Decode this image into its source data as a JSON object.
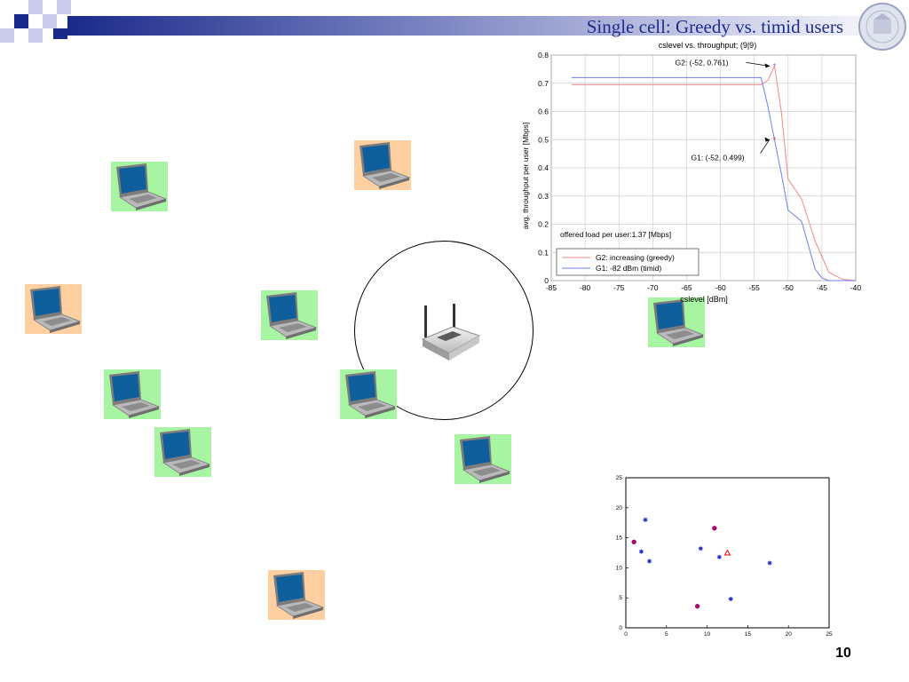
{
  "slide": {
    "title": "Single cell: Greedy vs. timid users",
    "page_number": "10"
  },
  "colors": {
    "title": "#1f2c8c",
    "header_square": "#1a2a8a",
    "laptop_green": "#a7f5a3",
    "laptop_orange": "#fecfa1",
    "series_g1": "#6f7ff0",
    "series_g2": "#f08a8a"
  },
  "icons": {
    "laptop": "laptop-icon",
    "router": "wireless-router-icon",
    "seal": "university-seal-icon"
  },
  "laptops": [
    {
      "name": "laptop-1",
      "bg": "green"
    },
    {
      "name": "laptop-2",
      "bg": "orange"
    },
    {
      "name": "laptop-3",
      "bg": "orange"
    },
    {
      "name": "laptop-4",
      "bg": "green"
    },
    {
      "name": "laptop-5",
      "bg": "green"
    },
    {
      "name": "laptop-6",
      "bg": "green"
    },
    {
      "name": "laptop-7",
      "bg": "green"
    },
    {
      "name": "laptop-8",
      "bg": "green"
    },
    {
      "name": "laptop-9",
      "bg": "green"
    },
    {
      "name": "laptop-10",
      "bg": "orange"
    }
  ],
  "chart_data": [
    {
      "type": "line",
      "title": "cslevel vs. throughput; (9|9)",
      "xlabel": "cslevel [dBm]",
      "ylabel": "avg. throughput per user [Mbps]",
      "xlim": [
        -85,
        -40
      ],
      "ylim": [
        0,
        0.8
      ],
      "xticks": [
        "-85",
        "-80",
        "-75",
        "-70",
        "-65",
        "-60",
        "-55",
        "-50",
        "-45",
        "-40"
      ],
      "yticks": [
        "0",
        "0.1",
        "0.2",
        "0.3",
        "0.4",
        "0.5",
        "0.6",
        "0.7",
        "0.8"
      ],
      "grid": true,
      "legend_position": "bottom-left",
      "series": [
        {
          "name": "G2: increasing (greedy)",
          "color": "#f08a8a",
          "x": [
            -82,
            -54,
            -53,
            -52,
            -51,
            -50,
            -48,
            -46,
            -44,
            -42,
            -40
          ],
          "y": [
            0.695,
            0.695,
            0.71,
            0.761,
            0.6,
            0.36,
            0.29,
            0.14,
            0.03,
            0.005,
            0.0
          ]
        },
        {
          "name": "G1:  -82 dBm (timid)",
          "color": "#6f7ff0",
          "x": [
            -82,
            -54,
            -53,
            -52,
            -51,
            -50,
            -48,
            -46,
            -45,
            -44,
            -42,
            -40
          ],
          "y": [
            0.72,
            0.72,
            0.62,
            0.499,
            0.38,
            0.25,
            0.21,
            0.04,
            0.01,
            0.0,
            0.0,
            0.0
          ]
        }
      ],
      "annotations": [
        {
          "text": "G2: (-52, 0.761)",
          "x": -52,
          "y": 0.761
        },
        {
          "text": "G1: (-52, 0.499)",
          "x": -52,
          "y": 0.499
        }
      ],
      "note": "offered load per user:1.37 [Mbps]"
    },
    {
      "type": "scatter",
      "xlim": [
        0,
        25
      ],
      "ylim": [
        0,
        25
      ],
      "xticks": [
        "0",
        "5",
        "10",
        "15",
        "20",
        "25"
      ],
      "yticks": [
        "0",
        "5",
        "10",
        "15",
        "20",
        "25"
      ],
      "grid": false,
      "series": [
        {
          "marker": "star",
          "color": "#2030d0",
          "points": [
            [
              2.4,
              18
            ],
            [
              1.9,
              12.7
            ],
            [
              2.9,
              11.1
            ],
            [
              9.2,
              13.2
            ],
            [
              11.5,
              11.8
            ],
            [
              12.9,
              4.8
            ],
            [
              17.7,
              10.8
            ]
          ]
        },
        {
          "marker": "circle",
          "color": "#c00060",
          "points": [
            [
              1.0,
              14.3
            ],
            [
              10.9,
              16.6
            ],
            [
              8.8,
              3.6
            ]
          ]
        },
        {
          "marker": "triangle",
          "color": "#ff0000",
          "points": [
            [
              12.5,
              12.5
            ]
          ]
        }
      ]
    }
  ]
}
